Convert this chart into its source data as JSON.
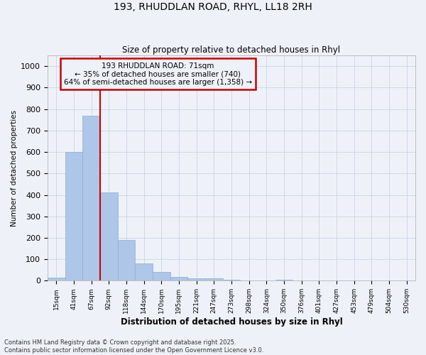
{
  "title_line1": "193, RHUDDLAN ROAD, RHYL, LL18 2RH",
  "title_line2": "Size of property relative to detached houses in Rhyl",
  "xlabel": "Distribution of detached houses by size in Rhyl",
  "ylabel": "Number of detached properties",
  "bar_labels": [
    "15sqm",
    "41sqm",
    "67sqm",
    "92sqm",
    "118sqm",
    "144sqm",
    "170sqm",
    "195sqm",
    "221sqm",
    "247sqm",
    "273sqm",
    "298sqm",
    "324sqm",
    "350sqm",
    "376sqm",
    "401sqm",
    "427sqm",
    "453sqm",
    "479sqm",
    "504sqm",
    "530sqm"
  ],
  "bar_values": [
    15,
    600,
    770,
    410,
    190,
    80,
    40,
    18,
    12,
    10,
    5,
    0,
    0,
    3,
    0,
    2,
    0,
    0,
    2,
    0,
    0
  ],
  "bar_color": "#aec6e8",
  "bar_edgecolor": "#8aafd4",
  "ylim": [
    0,
    1050
  ],
  "yticks": [
    0,
    100,
    200,
    300,
    400,
    500,
    600,
    700,
    800,
    900,
    1000
  ],
  "vline_x": 2.5,
  "vline_color": "#cc0000",
  "annotation_text": "193 RHUDDLAN ROAD: 71sqm\n← 35% of detached houses are smaller (740)\n64% of semi-detached houses are larger (1,358) →",
  "annotation_box_color": "#cc0000",
  "grid_color": "#c8d4e8",
  "background_color": "#eef2f8",
  "footnote": "Contains HM Land Registry data © Crown copyright and database right 2025.\nContains public sector information licensed under the Open Government Licence v3.0."
}
